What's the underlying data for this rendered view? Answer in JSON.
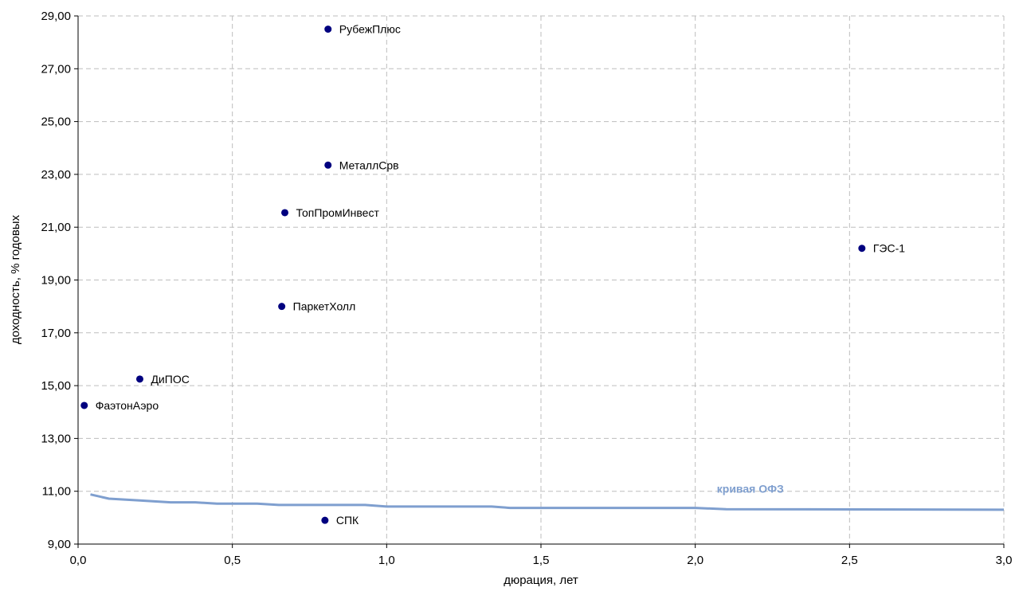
{
  "chart_data": {
    "type": "scatter",
    "xlabel": "дюрация, лет",
    "ylabel": "доходность, % годовых",
    "xlim": [
      0,
      3
    ],
    "ylim": [
      9,
      29
    ],
    "x_ticks": [
      "0,0",
      "0,5",
      "1,0",
      "1,5",
      "2,0",
      "2,5",
      "3,0"
    ],
    "x_tick_values": [
      0,
      0.5,
      1.0,
      1.5,
      2.0,
      2.5,
      3.0
    ],
    "y_ticks": [
      "9,00",
      "11,00",
      "13,00",
      "15,00",
      "17,00",
      "19,00",
      "21,00",
      "23,00",
      "25,00",
      "27,00",
      "29,00"
    ],
    "y_tick_values": [
      9,
      11,
      13,
      15,
      17,
      19,
      21,
      23,
      25,
      27,
      29
    ],
    "grid": true,
    "points": [
      {
        "label": "РубежПлюс",
        "x": 0.81,
        "y": 28.5
      },
      {
        "label": "МеталлСрв",
        "x": 0.81,
        "y": 23.35
      },
      {
        "label": "ТопПромИнвест",
        "x": 0.67,
        "y": 21.55
      },
      {
        "label": "ГЭС-1",
        "x": 2.54,
        "y": 20.2
      },
      {
        "label": "ПаркетХолл",
        "x": 0.66,
        "y": 18.0
      },
      {
        "label": "ДиПОС",
        "x": 0.2,
        "y": 15.25
      },
      {
        "label": "ФаэтонАэро",
        "x": 0.02,
        "y": 14.25
      },
      {
        "label": "СПК",
        "x": 0.8,
        "y": 9.9
      }
    ],
    "curve": {
      "name": "кривая ОФЗ",
      "color": "#7f9fcf",
      "x": [
        0.04,
        0.1,
        0.2,
        0.3,
        0.38,
        0.45,
        0.58,
        0.65,
        0.93,
        1.0,
        1.34,
        1.4,
        2.0,
        2.1,
        3.0
      ],
      "y": [
        10.88,
        10.72,
        10.65,
        10.58,
        10.58,
        10.53,
        10.53,
        10.48,
        10.48,
        10.42,
        10.42,
        10.37,
        10.37,
        10.32,
        10.3
      ]
    },
    "point_color": "#00007f"
  }
}
